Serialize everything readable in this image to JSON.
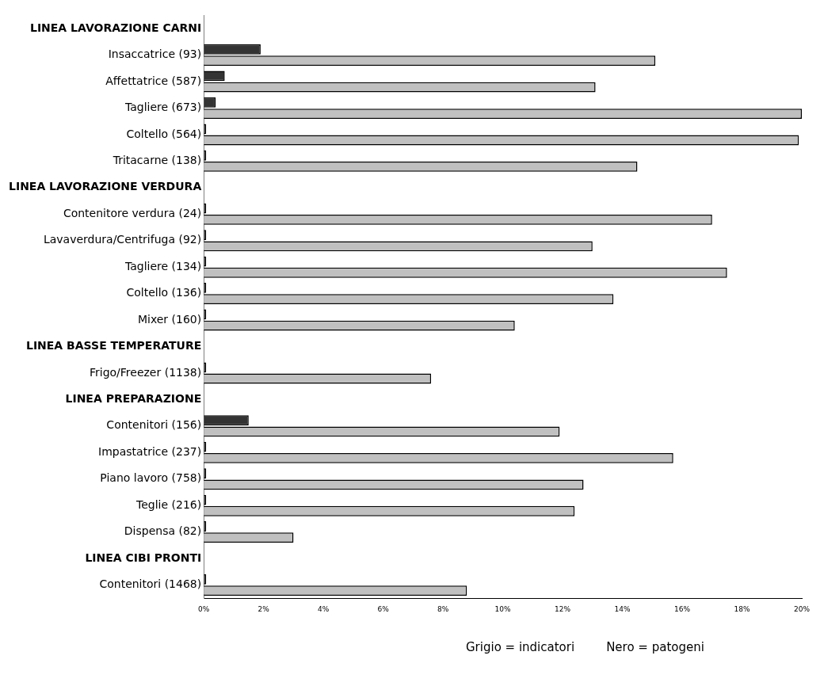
{
  "chart_data": {
    "type": "bar",
    "orientation": "horizontal",
    "categories": [
      "LINEA LAVORAZIONE CARNI",
      "Insaccatrice (93)",
      "Affettatrice (587)",
      "Tagliere (673)",
      "Coltello (564)",
      "Tritacarne (138)",
      "LINEA LAVORAZIONE VERDURA",
      "Contenitore verdura (24)",
      "Lavaverdura/Centrifuga (92)",
      "Tagliere (134)",
      "Coltello (136)",
      "Mixer (160)",
      "LINEA BASSE TEMPERATURE",
      "Frigo/Freezer (1138)",
      "LINEA PREPARAZIONE",
      "Contenitori (156)",
      "Impastatrice (237)",
      "Piano lavoro (758)",
      "Teglie (216)",
      "Dispensa (82)",
      "LINEA CIBI PRONTI",
      "Contenitori (1468)"
    ],
    "series": [
      {
        "color": "#333333",
        "values": [
          null,
          1.9,
          0.7,
          0.4,
          0,
          0,
          null,
          0,
          0,
          0,
          0,
          0,
          null,
          0,
          null,
          1.5,
          0,
          0,
          0,
          0,
          null,
          0
        ]
      },
      {
        "color": "#c0c0c0",
        "values": [
          null,
          15.1,
          13.1,
          20.0,
          19.9,
          14.5,
          null,
          17.0,
          13.0,
          17.5,
          13.7,
          10.4,
          null,
          7.6,
          null,
          11.9,
          15.7,
          12.7,
          12.4,
          3.0,
          null,
          8.8
        ]
      }
    ],
    "xlim": [
      0,
      20
    ],
    "xticks": [
      {
        "value": 0,
        "label": "0%"
      },
      {
        "value": 2,
        "label": "2%"
      },
      {
        "value": 4,
        "label": "4%"
      },
      {
        "value": 6,
        "label": "6%"
      },
      {
        "value": 8,
        "label": "8%"
      },
      {
        "value": 10,
        "label": "10%"
      },
      {
        "value": 12,
        "label": "12%"
      },
      {
        "value": 14,
        "label": "14%"
      },
      {
        "value": 16,
        "label": "16%"
      },
      {
        "value": 18,
        "label": "18%"
      },
      {
        "value": 20,
        "label": "20%"
      }
    ],
    "grid": false,
    "legend": false,
    "annotations": [
      "Grigio = indicatori",
      "Nero = patogeni"
    ]
  }
}
